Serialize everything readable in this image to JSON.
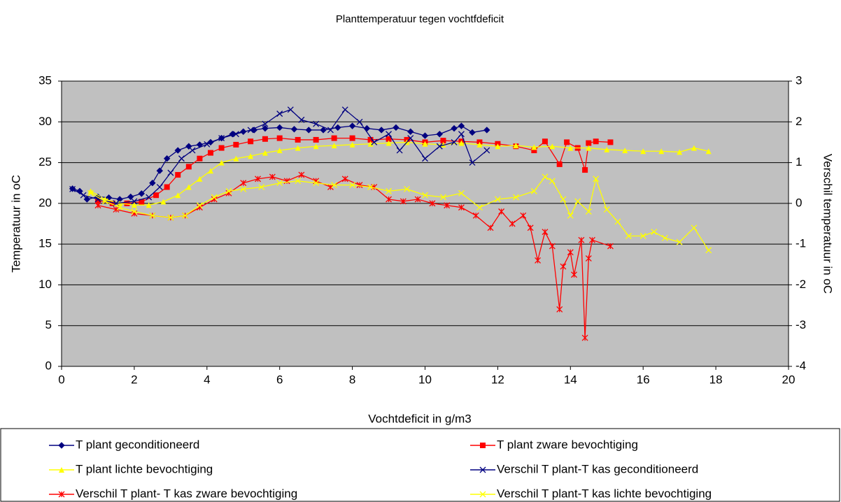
{
  "chart_data": {
    "type": "line",
    "title": "Planttemperatuur tegen vochtfdeficit",
    "x_label": "Vochtdeficit in g/m3",
    "y_label": "Temperatuur in oC",
    "y2_label": "Verschil temperatuur in oC",
    "xlim": [
      0,
      20
    ],
    "xticks": [
      0,
      2,
      4,
      6,
      8,
      10,
      12,
      14,
      16,
      18,
      20
    ],
    "ylim": [
      0,
      35
    ],
    "yticks": [
      0,
      5,
      10,
      15,
      20,
      25,
      30,
      35
    ],
    "y2lim": [
      -4,
      3
    ],
    "y2ticks": [
      -4,
      -3,
      -2,
      -1,
      0,
      1,
      2,
      3
    ],
    "grid": true,
    "plot_background": "#c0c0c0",
    "legend": "bottom",
    "series": [
      {
        "name": "T plant geconditioneerd",
        "color": "#000080",
        "marker": "diamond",
        "x": [
          0.3,
          0.5,
          0.7,
          1.0,
          1.3,
          1.6,
          1.9,
          2.2,
          2.5,
          2.7,
          2.9,
          3.2,
          3.5,
          3.8,
          4.1,
          4.4,
          4.7,
          5.0,
          5.3,
          5.6,
          6.0,
          6.4,
          6.8,
          7.2,
          7.6,
          8.0,
          8.4,
          8.8,
          9.2,
          9.6,
          10.0,
          10.4,
          10.8,
          11.0,
          11.3,
          11.7
        ],
        "values": [
          21.8,
          21.5,
          20.5,
          20.8,
          20.7,
          20.5,
          20.8,
          21.2,
          22.5,
          24,
          25.5,
          26.5,
          27,
          27.2,
          27.5,
          28,
          28.5,
          28.8,
          29,
          29.2,
          29.3,
          29.1,
          29,
          29,
          29.3,
          29.5,
          29.2,
          29,
          29.3,
          28.8,
          28.3,
          28.5,
          29.2,
          29.5,
          28.7,
          29.0
        ]
      },
      {
        "name": "T plant zware bevochtiging",
        "color": "#ff0000",
        "marker": "square",
        "x": [
          1.0,
          1.4,
          1.8,
          2.2,
          2.6,
          2.9,
          3.2,
          3.5,
          3.8,
          4.1,
          4.4,
          4.8,
          5.2,
          5.6,
          6.0,
          6.5,
          7.0,
          7.5,
          8.0,
          8.5,
          9.0,
          9.5,
          10.0,
          10.5,
          11.0,
          11.5,
          12.0,
          12.5,
          13.0,
          13.3,
          13.7,
          13.9,
          14.2,
          14.4,
          14.5,
          14.7,
          15.1
        ],
        "values": [
          20.3,
          20,
          20,
          20.2,
          21,
          22,
          23.5,
          24.5,
          25.5,
          26.2,
          26.8,
          27.2,
          27.6,
          27.9,
          28,
          27.8,
          27.8,
          28,
          28,
          27.8,
          27.9,
          27.8,
          27.5,
          27.7,
          27.6,
          27.5,
          27.3,
          27,
          26.5,
          27.6,
          24.8,
          27.5,
          26.8,
          24.1,
          27.4,
          27.6,
          27.5
        ]
      },
      {
        "name": "T plant lichte bevochtiging",
        "color": "#ffff00",
        "marker": "triangle",
        "x": [
          0.8,
          1.2,
          1.6,
          2.0,
          2.4,
          2.8,
          3.2,
          3.5,
          3.8,
          4.1,
          4.4,
          4.8,
          5.2,
          5.6,
          6.0,
          6.5,
          7.0,
          7.5,
          8.0,
          8.5,
          9.0,
          9.5,
          10.0,
          10.5,
          11.0,
          11.5,
          12.0,
          12.5,
          13.0,
          13.5,
          14.0,
          14.5,
          15.0,
          15.5,
          16.0,
          16.5,
          17.0,
          17.4,
          17.8
        ],
        "values": [
          21.5,
          20.5,
          20,
          19.8,
          19.8,
          20.2,
          21,
          22,
          23,
          24,
          25,
          25.5,
          25.8,
          26.2,
          26.5,
          26.8,
          27,
          27.1,
          27.2,
          27.3,
          27.4,
          27.5,
          27.3,
          27.2,
          27.4,
          27.2,
          27,
          27.1,
          26.9,
          27,
          26.8,
          26.8,
          26.6,
          26.5,
          26.4,
          26.4,
          26.3,
          26.8,
          26.4
        ]
      },
      {
        "name": "Verschil T plant-T kas geconditioneerd",
        "color": "#000080",
        "marker": "x",
        "axis": "y2",
        "x": [
          0.3,
          0.6,
          1.0,
          1.5,
          2.0,
          2.4,
          2.7,
          3.0,
          3.3,
          3.6,
          4.0,
          4.4,
          4.8,
          5.2,
          5.6,
          6.0,
          6.3,
          6.6,
          7.0,
          7.4,
          7.8,
          8.2,
          8.6,
          9.0,
          9.3,
          9.6,
          10.0,
          10.4,
          10.8,
          11.0,
          11.3,
          11.7
        ],
        "values": [
          0.35,
          0.2,
          0.1,
          0,
          0.05,
          0.15,
          0.4,
          0.75,
          1.1,
          1.3,
          1.45,
          1.6,
          1.7,
          1.8,
          1.95,
          2.2,
          2.3,
          2.05,
          1.95,
          1.8,
          2.3,
          2.0,
          1.5,
          1.7,
          1.3,
          1.6,
          1.1,
          1.4,
          1.5,
          1.7,
          1.0,
          1.3
        ]
      },
      {
        "name": "Verschil T plant- T kas zware bevochtiging",
        "color": "#ff0000",
        "marker": "star",
        "axis": "y2",
        "x": [
          1.0,
          1.5,
          2.0,
          2.5,
          3.0,
          3.4,
          3.8,
          4.2,
          4.6,
          5.0,
          5.4,
          5.8,
          6.2,
          6.6,
          7.0,
          7.4,
          7.8,
          8.2,
          8.6,
          9.0,
          9.4,
          9.8,
          10.2,
          10.6,
          11.0,
          11.4,
          11.8,
          12.1,
          12.4,
          12.7,
          12.9,
          13.1,
          13.3,
          13.5,
          13.7,
          13.8,
          14.0,
          14.1,
          14.3,
          14.4,
          14.5,
          14.6,
          15.1
        ],
        "values": [
          -0.05,
          -0.15,
          -0.25,
          -0.3,
          -0.35,
          -0.3,
          -0.1,
          0.1,
          0.25,
          0.5,
          0.6,
          0.65,
          0.55,
          0.7,
          0.55,
          0.4,
          0.6,
          0.45,
          0.4,
          0.1,
          0.05,
          0.1,
          0,
          -0.05,
          -0.1,
          -0.3,
          -0.6,
          -0.2,
          -0.5,
          -0.3,
          -0.6,
          -1.4,
          -0.7,
          -1.05,
          -2.6,
          -1.55,
          -1.2,
          -1.75,
          -0.9,
          -3.3,
          -1.35,
          -0.9,
          -1.05
        ]
      },
      {
        "name": "Verschil T plant-T kas lichte bevochtiging",
        "color": "#ffff00",
        "marker": "x",
        "axis": "y2",
        "x": [
          0.8,
          1.2,
          1.6,
          2.0,
          2.5,
          3.0,
          3.4,
          3.8,
          4.2,
          4.6,
          5.0,
          5.5,
          6.0,
          6.5,
          7.0,
          7.5,
          8.0,
          8.5,
          9.0,
          9.5,
          10.0,
          10.5,
          11.0,
          11.5,
          12.0,
          12.5,
          13.0,
          13.3,
          13.5,
          13.8,
          14.0,
          14.2,
          14.5,
          14.7,
          15.0,
          15.3,
          15.6,
          16.0,
          16.3,
          16.6,
          17.0,
          17.4,
          17.8
        ],
        "values": [
          0.25,
          0.05,
          -0.1,
          -0.2,
          -0.3,
          -0.35,
          -0.3,
          -0.05,
          0.15,
          0.3,
          0.35,
          0.4,
          0.5,
          0.55,
          0.5,
          0.45,
          0.45,
          0.4,
          0.3,
          0.35,
          0.2,
          0.15,
          0.25,
          -0.1,
          0.1,
          0.15,
          0.3,
          0.65,
          0.55,
          0.1,
          -0.3,
          0.05,
          -0.2,
          0.6,
          -0.15,
          -0.45,
          -0.8,
          -0.8,
          -0.7,
          -0.85,
          -0.95,
          -0.6,
          -1.15
        ]
      }
    ]
  }
}
